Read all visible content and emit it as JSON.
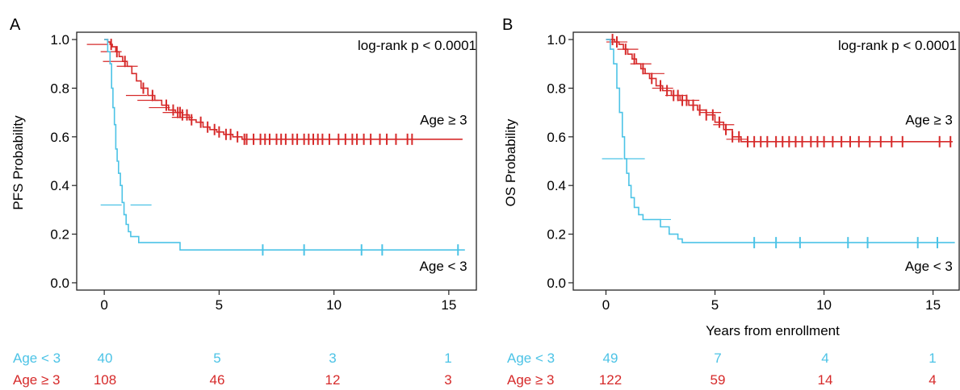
{
  "colors": {
    "young": "#4CC3E6",
    "old": "#D62A2A",
    "axis": "#222222"
  },
  "chart_data": [
    {
      "type": "line",
      "panel_label": "A",
      "ylabel": "PFS Probability",
      "xlabel": "",
      "annotation": "log-rank p < 0.0001",
      "xlim": [
        -1.2,
        16.2
      ],
      "ylim": [
        -0.03,
        1.03
      ],
      "xticks": [
        0,
        5,
        10,
        15
      ],
      "yticks": [
        0.0,
        0.2,
        0.4,
        0.6,
        0.8,
        1.0
      ],
      "xtick_labels": [
        "0",
        "5",
        "10",
        "15"
      ],
      "ytick_labels": [
        "0.0",
        "0.2",
        "0.4",
        "0.6",
        "0.8",
        "1.0"
      ],
      "series": [
        {
          "name": "Age ≥ 3",
          "color": "old",
          "label_x": 15.8,
          "label_y": 0.67,
          "x": [
            0,
            0.15,
            0.25,
            0.35,
            0.5,
            0.65,
            0.8,
            1.0,
            1.2,
            1.4,
            1.6,
            1.9,
            2.2,
            2.5,
            2.8,
            3.1,
            3.4,
            3.7,
            4.0,
            4.3,
            4.6,
            4.9,
            5.2,
            5.6,
            6.0,
            15.6
          ],
          "y": [
            1.0,
            0.99,
            0.98,
            0.97,
            0.95,
            0.93,
            0.91,
            0.89,
            0.86,
            0.83,
            0.8,
            0.77,
            0.75,
            0.73,
            0.71,
            0.7,
            0.69,
            0.67,
            0.66,
            0.64,
            0.63,
            0.62,
            0.61,
            0.6,
            0.59,
            0.59
          ],
          "censor_x": [
            0.3,
            0.55,
            0.9,
            1.7,
            2.1,
            2.7,
            3.0,
            3.2,
            3.3,
            3.4,
            3.6,
            3.8,
            4.2,
            4.5,
            4.8,
            5.0,
            5.3,
            5.5,
            5.8,
            6.1,
            6.2,
            6.5,
            6.8,
            7.0,
            7.2,
            7.5,
            7.7,
            7.9,
            8.2,
            8.4,
            8.7,
            8.9,
            9.1,
            9.3,
            9.5,
            9.8,
            10.2,
            10.5,
            10.8,
            11.0,
            11.3,
            11.6,
            12.0,
            12.3,
            12.7,
            13.2,
            13.4
          ],
          "ci_x": [
            -0.3,
            0.3,
            0.4,
            1.0,
            1.4,
            1.9,
            2.4,
            3.0,
            3.4
          ],
          "ci_y": [
            0.98,
            0.95,
            0.91,
            0.89,
            0.77,
            0.75,
            0.72,
            0.7,
            0.68
          ]
        },
        {
          "name": "Age < 3",
          "color": "young",
          "label_x": 15.8,
          "label_y": 0.07,
          "x": [
            0,
            0.15,
            0.25,
            0.32,
            0.38,
            0.44,
            0.5,
            0.56,
            0.62,
            0.7,
            0.78,
            0.86,
            0.95,
            1.05,
            1.15,
            1.5,
            3.3,
            15.7
          ],
          "y": [
            1.0,
            0.95,
            0.9,
            0.8,
            0.72,
            0.65,
            0.55,
            0.5,
            0.45,
            0.4,
            0.33,
            0.28,
            0.24,
            0.21,
            0.19,
            0.165,
            0.135,
            0.135
          ],
          "censor_x": [
            6.9,
            8.7,
            11.2,
            12.1,
            15.4
          ],
          "ci_x": [
            0.3,
            1.6
          ],
          "ci_y": [
            0.32,
            0.32
          ]
        }
      ],
      "risk_table": {
        "labels": [
          "Age < 3",
          "Age ≥ 3"
        ],
        "times": [
          0,
          5,
          10,
          15
        ],
        "rows": [
          [
            40,
            5,
            3,
            1
          ],
          [
            108,
            46,
            12,
            3
          ]
        ]
      }
    },
    {
      "type": "line",
      "panel_label": "B",
      "ylabel": "OS Probability",
      "xlabel": "Years from enrollment",
      "annotation": "log-rank p < 0.0001",
      "xlim": [
        -1.5,
        16.2
      ],
      "ylim": [
        -0.03,
        1.03
      ],
      "xticks": [
        0,
        5,
        10,
        15
      ],
      "yticks": [
        0.0,
        0.2,
        0.4,
        0.6,
        0.8,
        1.0
      ],
      "xtick_labels": [
        "0",
        "5",
        "10",
        "15"
      ],
      "ytick_labels": [
        "0.0",
        "0.2",
        "0.4",
        "0.6",
        "0.8",
        "1.0"
      ],
      "series": [
        {
          "name": "Age ≥ 3",
          "color": "old",
          "label_x": 15.9,
          "label_y": 0.67,
          "x": [
            0,
            0.4,
            0.6,
            0.8,
            1.0,
            1.2,
            1.4,
            1.6,
            1.8,
            2.0,
            2.3,
            2.6,
            3.0,
            3.4,
            3.8,
            4.2,
            4.6,
            5.0,
            5.4,
            5.8,
            6.2,
            15.9
          ],
          "y": [
            1.0,
            0.99,
            0.98,
            0.96,
            0.94,
            0.92,
            0.9,
            0.88,
            0.86,
            0.84,
            0.81,
            0.79,
            0.77,
            0.75,
            0.73,
            0.71,
            0.69,
            0.66,
            0.63,
            0.6,
            0.58,
            0.58
          ],
          "censor_x": [
            0.3,
            0.5,
            0.9,
            1.3,
            1.7,
            2.1,
            2.5,
            2.8,
            3.1,
            3.3,
            3.5,
            3.7,
            4.0,
            4.3,
            4.6,
            4.9,
            5.2,
            5.5,
            5.8,
            6.1,
            6.5,
            6.8,
            7.1,
            7.4,
            7.8,
            8.1,
            8.4,
            8.7,
            9.0,
            9.4,
            9.7,
            10.0,
            10.4,
            10.8,
            11.2,
            11.6,
            12.1,
            12.6,
            13.1,
            13.6,
            15.3,
            15.8
          ],
          "ci_x": [
            0.5,
            1.0,
            1.6,
            2.2,
            2.6,
            3.2,
            3.8,
            4.8,
            5.4,
            6.0
          ],
          "ci_y": [
            0.99,
            0.96,
            0.9,
            0.86,
            0.8,
            0.77,
            0.75,
            0.7,
            0.65,
            0.59
          ]
        },
        {
          "name": "Age < 3",
          "color": "young",
          "label_x": 15.9,
          "label_y": 0.07,
          "x": [
            0,
            0.2,
            0.35,
            0.5,
            0.62,
            0.75,
            0.85,
            0.95,
            1.05,
            1.15,
            1.3,
            1.5,
            1.7,
            2.5,
            2.9,
            3.3,
            3.5,
            16.0
          ],
          "y": [
            1.0,
            0.96,
            0.9,
            0.8,
            0.7,
            0.6,
            0.51,
            0.45,
            0.4,
            0.35,
            0.31,
            0.28,
            0.26,
            0.23,
            0.2,
            0.18,
            0.165,
            0.165
          ],
          "censor_x": [
            6.8,
            7.8,
            8.9,
            11.1,
            12.0,
            14.3,
            15.2
          ],
          "ci_x": [
            0.3,
            1.3,
            2.5
          ],
          "ci_y": [
            0.51,
            0.51,
            0.26
          ]
        }
      ],
      "risk_table": {
        "labels": [
          "Age < 3",
          "Age ≥ 3"
        ],
        "times": [
          0,
          5,
          10,
          15
        ],
        "rows": [
          [
            49,
            7,
            4,
            1
          ],
          [
            122,
            59,
            14,
            4
          ]
        ]
      }
    }
  ]
}
